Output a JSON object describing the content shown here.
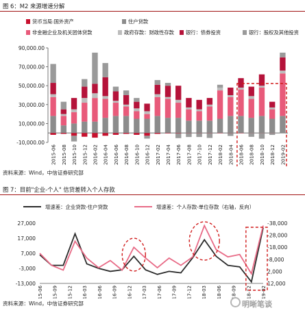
{
  "figure1": {
    "title": "图 6：M2 来源增速分解",
    "source": "资料来源：Wind，中信证券研究部",
    "legend": [
      {
        "label": "货币当局:国外资产",
        "color": "#c8102e"
      },
      {
        "label": "住户贷款",
        "color": "#8c8c8c"
      },
      {
        "label": "非金融企业及机关团体贷款",
        "color": "#e85a7a"
      },
      {
        "label": "政府存款：财政性存款",
        "color": "#bdbdbd"
      },
      {
        "label": "银行：债券投资",
        "color": "#b5133a"
      },
      {
        "label": "银行：股权及其他投资",
        "color": "#9a9a9a"
      }
    ]
  },
  "figure2": {
    "title": "图 7：目前\"企业-个人\" 信贷差转入个人存款",
    "source": "资料来源：Wind，中信证券研究部",
    "legend": [
      {
        "label": "增速差：企业贷款-住户贷款",
        "color": "#2a2a2a"
      },
      {
        "label": "增速差：个人存款-单位存款（右轴，反向）",
        "color": "#e86a86"
      }
    ]
  },
  "watermark": "明晰笔谈",
  "chart_data": [
    {
      "type": "bar",
      "stacked": true,
      "categories": [
        "2015-06",
        "2015-08",
        "2015-10",
        "2015-12",
        "2016-02",
        "2016-04",
        "2016-06",
        "2016-08",
        "2016-10",
        "2016-12",
        "2017-02",
        "2017-04",
        "2017-06",
        "2017-08",
        "2017-10",
        "2017-12",
        "2018-02",
        "2018-04",
        "2018-06",
        "2018-08",
        "2018-10",
        "2018-12",
        "2019-02"
      ],
      "ylim": [
        -10000,
        90000
      ],
      "yticks": [
        "-10,000.00",
        "10,000.00",
        "30,000.00",
        "50,000.00",
        "70,000.00",
        "90,000.00"
      ],
      "ytick_values": [
        -10000,
        10000,
        30000,
        50000,
        70000,
        90000
      ],
      "series": [
        {
          "name": "货币当局:国外资产",
          "color": "#c8102e",
          "values": [
            -2000,
            -1000,
            -3000,
            -4000,
            -5000,
            -3000,
            -2000,
            -1000,
            -2000,
            -3000,
            -1000,
            -500,
            -500,
            -300,
            -300,
            -300,
            -200,
            -200,
            -100,
            -100,
            -100,
            -100,
            0
          ]
        },
        {
          "name": "住户贷款",
          "color": "#8c8c8c",
          "values": [
            18000,
            8000,
            10000,
            12000,
            12000,
            16000,
            18000,
            18000,
            15000,
            15000,
            18000,
            16000,
            16000,
            13000,
            13000,
            13000,
            15000,
            18000,
            18000,
            16000,
            18000,
            15000,
            18000
          ]
        },
        {
          "name": "非金融企业及机关团体贷款",
          "color": "#e85a7a",
          "values": [
            20000,
            10000,
            12000,
            20000,
            25000,
            20000,
            14000,
            10000,
            8000,
            5000,
            20000,
            20000,
            16000,
            12000,
            10000,
            15000,
            30000,
            20000,
            28000,
            20000,
            30000,
            10000,
            45000
          ]
        },
        {
          "name": "政府存款：财政性存款",
          "color": "#bdbdbd",
          "values": [
            3000,
            2000,
            3000,
            5000,
            5000,
            3000,
            2000,
            2000,
            3000,
            3000,
            3000,
            2000,
            3000,
            2000,
            2000,
            2000,
            3000,
            2000,
            2000,
            3000,
            2000,
            2000,
            3000
          ]
        },
        {
          "name": "银行：债券投资",
          "color": "#b5133a",
          "values": [
            12000,
            5000,
            12000,
            12000,
            10000,
            20000,
            10000,
            10000,
            7000,
            8000,
            10000,
            12000,
            15000,
            10000,
            10000,
            7000,
            0,
            8000,
            10000,
            10000,
            12000,
            6000,
            14000
          ]
        },
        {
          "name": "银行：股权及其他投资",
          "color": "#9a9a9a",
          "values": [
            20000,
            8000,
            -6000,
            8000,
            33000,
            15000,
            5000,
            5000,
            4000,
            -3000,
            5000,
            3000,
            -5000,
            -4000,
            -4000,
            -5000,
            3000,
            -3000,
            0,
            -4000,
            -6000,
            -2000,
            5000
          ]
        }
      ],
      "annotation": "2018-06 至 2019-02 红色虚线框"
    },
    {
      "type": "line",
      "x": [
        "2015-06",
        "2015-10",
        "2015-12",
        "2016-02",
        "2016-06",
        "2016-08",
        "2016-12",
        "2017-02",
        "2017-04",
        "2017-06",
        "2017-08",
        "2017-10",
        "2017-12",
        "2018-02",
        "2018-04",
        "2018-06",
        "2018-08",
        "2018-10",
        "2018-12",
        "2019-02"
      ],
      "xticks": [
        "2015-06",
        "2015-09",
        "2015-12",
        "2016-03",
        "2016-06",
        "2016-09",
        "2016-12",
        "2017-03",
        "2017-06",
        "2017-09",
        "2017-12",
        "2018-03",
        "2018-06",
        "2018-09",
        "2018-12",
        "2019-02"
      ],
      "ylim_left": [
        -13000,
        27000
      ],
      "yticks_left": [
        "-13,000",
        "-3,000",
        "7,000",
        "17,000",
        "27,000"
      ],
      "ytick_values_left": [
        -13000,
        -3000,
        7000,
        17000,
        27000
      ],
      "ylim_right_reversed": [
        -38000,
        12000
      ],
      "yticks_right": [
        "-38,000",
        "-28,000",
        "-18,000",
        "-8,000",
        "2,000",
        "12,000"
      ],
      "ytick_values_right": [
        -38000,
        -28000,
        -18000,
        -8000,
        2000,
        12000
      ],
      "series": [
        {
          "name": "增速差：企业贷款-住户贷款",
          "axis": "left",
          "color": "#2a2a2a",
          "values": [
            6000,
            -1000,
            -1000,
            20000,
            0,
            -3000,
            -5000,
            -4000,
            5000,
            -4000,
            -7000,
            -5000,
            -6000,
            4000,
            16000,
            5000,
            -1000,
            -2000,
            -12000,
            24000
          ]
        },
        {
          "name": "增速差：个人存款-单位存款（右轴，反向）",
          "axis": "right",
          "color": "#e86a86",
          "values": [
            -13000,
            -3000,
            1000,
            -23000,
            -9000,
            -1000,
            -7000,
            1000,
            -18000,
            -9000,
            -1000,
            -9000,
            -3000,
            -10000,
            -36000,
            -16000,
            -10000,
            -12000,
            4000,
            -36000
          ]
        }
      ],
      "annotations": [
        "2017-04 红色虚线椭圆",
        "2018-03 至 2018-06 红色虚线椭圆",
        "2018-12 至 2019-02 红色虚线框"
      ]
    }
  ]
}
